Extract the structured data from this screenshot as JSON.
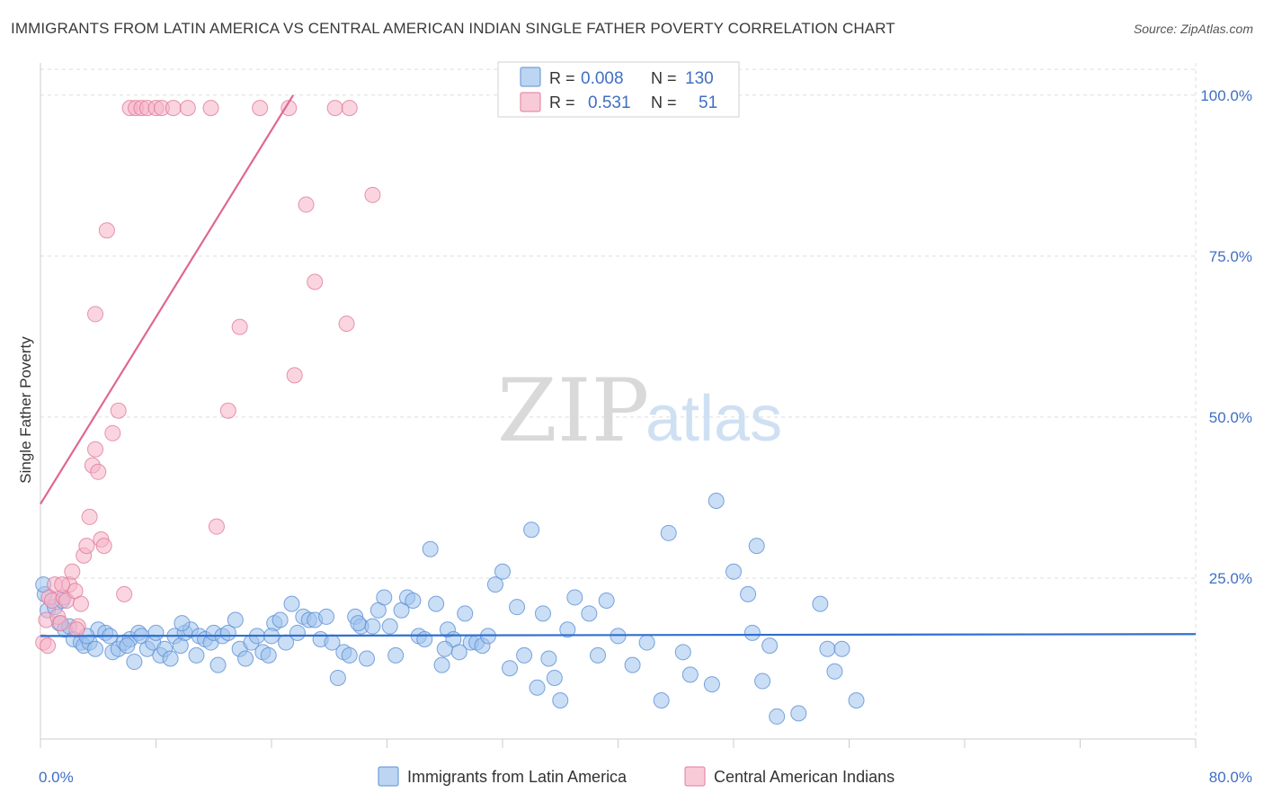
{
  "title": "IMMIGRANTS FROM LATIN AMERICA VS CENTRAL AMERICAN INDIAN SINGLE FATHER POVERTY CORRELATION CHART",
  "source": "Source: ZipAtlas.com",
  "watermark": {
    "zip": "ZIP",
    "atlas": "atlas"
  },
  "legend_box": {
    "rows": [
      {
        "r_label": "R =",
        "r_value": "0.008",
        "n_label": "N =",
        "n_value": "130",
        "color": "#9fc3ec"
      },
      {
        "r_label": "R =",
        "r_value": "0.531",
        "n_label": "N =",
        "n_value": "51",
        "color": "#f5b3c7"
      }
    ]
  },
  "chart_data": {
    "type": "scatter",
    "xlabel": "",
    "ylabel": "Single Father Poverty",
    "xlim": [
      0,
      80
    ],
    "ylim": [
      0,
      105
    ],
    "x_tick_labels": [
      "0.0%",
      "80.0%"
    ],
    "y_tick_labels": [
      "25.0%",
      "50.0%",
      "75.0%",
      "100.0%"
    ],
    "y_ticks": [
      25,
      50,
      75,
      100
    ],
    "legend_placement": "bottom-center",
    "series": [
      {
        "name": "Immigrants from Latin America",
        "color": "#9fc3ec",
        "stroke": "#5b8fd6",
        "trend": [
          [
            0,
            16.0
          ],
          [
            80,
            16.3
          ]
        ],
        "trend_color": "#2f6fcf",
        "points": [
          [
            0.3,
            22.5
          ],
          [
            0.5,
            20.0
          ],
          [
            1.0,
            20.5
          ],
          [
            1.3,
            18.0
          ],
          [
            1.7,
            17.0
          ],
          [
            2.0,
            17.5
          ],
          [
            2.3,
            15.5
          ],
          [
            2.8,
            15.0
          ],
          [
            3.0,
            14.5
          ],
          [
            3.4,
            15.0
          ],
          [
            3.8,
            14.0
          ],
          [
            4.0,
            17.0
          ],
          [
            4.5,
            16.5
          ],
          [
            4.8,
            16.0
          ],
          [
            5.0,
            13.5
          ],
          [
            5.4,
            14.0
          ],
          [
            5.8,
            15.0
          ],
          [
            6.2,
            15.5
          ],
          [
            6.5,
            12.0
          ],
          [
            6.8,
            16.5
          ],
          [
            7.0,
            16.0
          ],
          [
            7.4,
            14.0
          ],
          [
            7.8,
            15.0
          ],
          [
            8.0,
            16.5
          ],
          [
            8.3,
            13.0
          ],
          [
            8.6,
            14.0
          ],
          [
            9.0,
            12.5
          ],
          [
            9.3,
            16.0
          ],
          [
            9.7,
            14.5
          ],
          [
            10.0,
            16.5
          ],
          [
            10.4,
            17.0
          ],
          [
            10.8,
            13.0
          ],
          [
            11.0,
            16.0
          ],
          [
            11.4,
            15.5
          ],
          [
            11.8,
            15.0
          ],
          [
            12.0,
            16.5
          ],
          [
            12.3,
            11.5
          ],
          [
            12.6,
            16.0
          ],
          [
            13.0,
            16.5
          ],
          [
            13.5,
            18.5
          ],
          [
            13.8,
            14.0
          ],
          [
            14.2,
            12.5
          ],
          [
            14.6,
            15.0
          ],
          [
            15.0,
            16.0
          ],
          [
            15.4,
            13.5
          ],
          [
            15.8,
            13.0
          ],
          [
            16.2,
            18.0
          ],
          [
            16.6,
            18.5
          ],
          [
            17.0,
            15.0
          ],
          [
            17.4,
            21.0
          ],
          [
            17.8,
            16.5
          ],
          [
            18.2,
            19.0
          ],
          [
            18.6,
            18.5
          ],
          [
            19.0,
            18.5
          ],
          [
            19.4,
            15.5
          ],
          [
            19.8,
            19.0
          ],
          [
            20.2,
            15.0
          ],
          [
            20.6,
            9.5
          ],
          [
            21.0,
            13.5
          ],
          [
            21.4,
            13.0
          ],
          [
            21.8,
            19.0
          ],
          [
            22.2,
            17.5
          ],
          [
            22.6,
            12.5
          ],
          [
            23.0,
            17.5
          ],
          [
            23.4,
            20.0
          ],
          [
            23.8,
            22.0
          ],
          [
            24.2,
            17.5
          ],
          [
            24.6,
            13.0
          ],
          [
            25.0,
            20.0
          ],
          [
            25.4,
            22.0
          ],
          [
            25.8,
            21.5
          ],
          [
            26.2,
            16.0
          ],
          [
            26.6,
            15.5
          ],
          [
            27.0,
            29.5
          ],
          [
            27.4,
            21.0
          ],
          [
            27.8,
            11.5
          ],
          [
            28.2,
            17.0
          ],
          [
            28.6,
            15.5
          ],
          [
            29.0,
            13.5
          ],
          [
            29.4,
            19.5
          ],
          [
            29.8,
            15.0
          ],
          [
            30.2,
            15.0
          ],
          [
            30.6,
            14.5
          ],
          [
            31.0,
            16.0
          ],
          [
            31.5,
            24.0
          ],
          [
            32.0,
            26.0
          ],
          [
            32.5,
            11.0
          ],
          [
            33.0,
            20.5
          ],
          [
            33.5,
            13.0
          ],
          [
            34.0,
            32.5
          ],
          [
            34.4,
            8.0
          ],
          [
            34.8,
            19.5
          ],
          [
            35.2,
            12.5
          ],
          [
            35.6,
            9.5
          ],
          [
            36.0,
            6.0
          ],
          [
            37.0,
            22.0
          ],
          [
            38.0,
            19.5
          ],
          [
            38.6,
            13.0
          ],
          [
            39.2,
            21.5
          ],
          [
            40.0,
            16.0
          ],
          [
            41.0,
            11.5
          ],
          [
            42.0,
            15.0
          ],
          [
            43.0,
            6.0
          ],
          [
            43.5,
            32.0
          ],
          [
            44.5,
            13.5
          ],
          [
            46.5,
            8.5
          ],
          [
            46.8,
            37.0
          ],
          [
            48.0,
            26.0
          ],
          [
            49.0,
            22.5
          ],
          [
            49.3,
            16.5
          ],
          [
            49.6,
            30.0
          ],
          [
            50.0,
            9.0
          ],
          [
            50.5,
            14.5
          ],
          [
            51.0,
            3.5
          ],
          [
            52.5,
            4.0
          ],
          [
            54.0,
            21.0
          ],
          [
            54.5,
            14.0
          ],
          [
            55.0,
            10.5
          ],
          [
            55.5,
            14.0
          ],
          [
            56.5,
            6.0
          ],
          [
            0.2,
            24.0
          ],
          [
            1.5,
            21.5
          ],
          [
            3.2,
            16.0
          ],
          [
            6.0,
            14.5
          ],
          [
            9.8,
            18.0
          ],
          [
            16.0,
            16.0
          ],
          [
            22.0,
            18.0
          ],
          [
            28.0,
            14.0
          ],
          [
            36.5,
            17.0
          ],
          [
            45.0,
            10.0
          ]
        ]
      },
      {
        "name": "Central American Indians",
        "color": "#f5b3c7",
        "stroke": "#e07a9c",
        "trend": [
          [
            0,
            36.5
          ],
          [
            17.5,
            100
          ]
        ],
        "trend_color": "#e0678f",
        "points": [
          [
            0.2,
            15.0
          ],
          [
            0.4,
            18.5
          ],
          [
            0.6,
            22.0
          ],
          [
            0.8,
            21.5
          ],
          [
            1.0,
            24.0
          ],
          [
            1.2,
            19.0
          ],
          [
            1.4,
            18.0
          ],
          [
            1.6,
            22.0
          ],
          [
            1.8,
            21.5
          ],
          [
            2.0,
            24.0
          ],
          [
            2.2,
            26.0
          ],
          [
            2.4,
            23.0
          ],
          [
            2.6,
            17.5
          ],
          [
            2.8,
            21.0
          ],
          [
            3.0,
            28.5
          ],
          [
            3.2,
            30.0
          ],
          [
            3.4,
            34.5
          ],
          [
            3.6,
            42.5
          ],
          [
            3.8,
            45.0
          ],
          [
            4.0,
            41.5
          ],
          [
            4.2,
            31.0
          ],
          [
            4.4,
            30.0
          ],
          [
            4.6,
            79.0
          ],
          [
            5.0,
            47.5
          ],
          [
            5.4,
            51.0
          ],
          [
            5.8,
            22.5
          ],
          [
            6.2,
            98.0
          ],
          [
            6.6,
            98.0
          ],
          [
            7.0,
            98.0
          ],
          [
            7.4,
            98.0
          ],
          [
            8.0,
            98.0
          ],
          [
            8.4,
            98.0
          ],
          [
            9.2,
            98.0
          ],
          [
            10.2,
            98.0
          ],
          [
            11.8,
            98.0
          ],
          [
            12.2,
            33.0
          ],
          [
            13.0,
            51.0
          ],
          [
            13.8,
            64.0
          ],
          [
            15.2,
            98.0
          ],
          [
            17.2,
            98.0
          ],
          [
            17.6,
            56.5
          ],
          [
            18.4,
            83.0
          ],
          [
            19.0,
            71.0
          ],
          [
            20.4,
            98.0
          ],
          [
            21.2,
            64.5
          ],
          [
            21.4,
            98.0
          ],
          [
            23.0,
            84.5
          ],
          [
            1.5,
            24.0
          ],
          [
            2.5,
            17.0
          ],
          [
            0.5,
            14.5
          ],
          [
            3.8,
            66.0
          ]
        ]
      }
    ]
  }
}
